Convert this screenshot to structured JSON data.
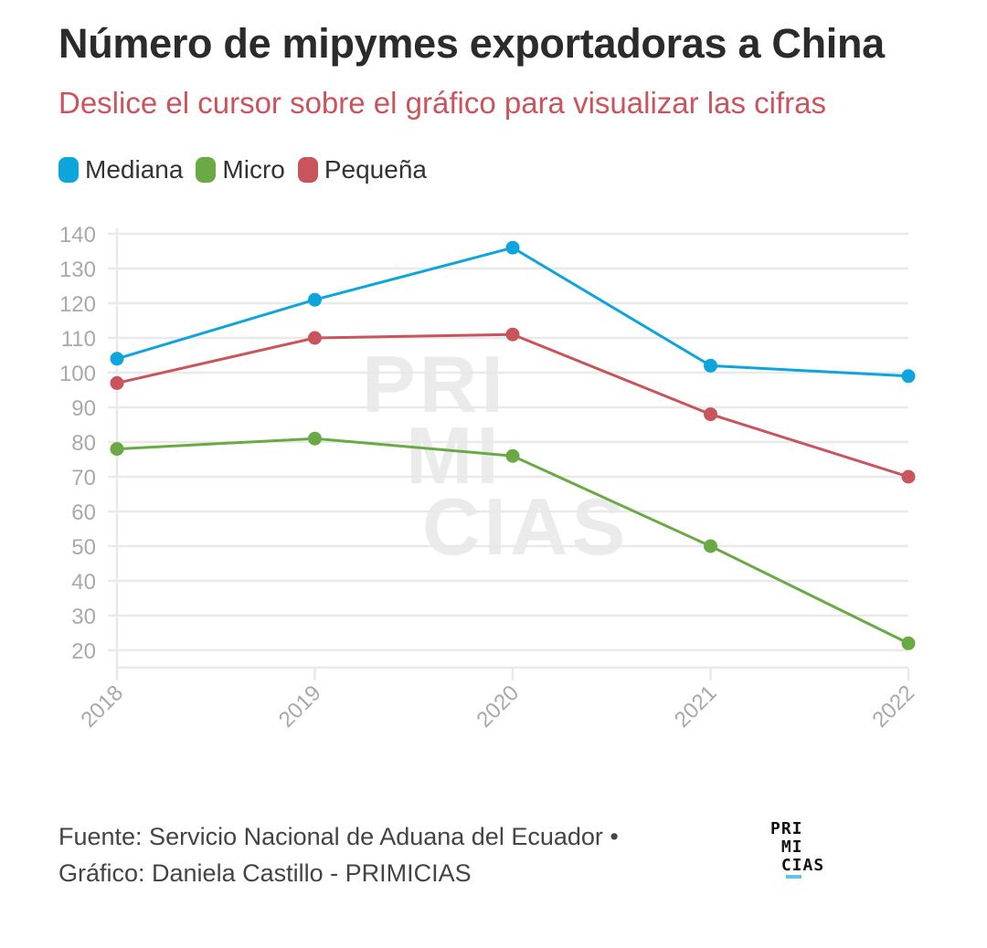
{
  "header": {
    "title": "Número de mipymes exportadoras a China",
    "subtitle": "Deslice el cursor sobre el gráfico para visualizar las cifras"
  },
  "legend": [
    {
      "label": "Mediana",
      "color": "#0ea5dc"
    },
    {
      "label": "Micro",
      "color": "#6aaa45"
    },
    {
      "label": "Pequeña",
      "color": "#c9545c"
    }
  ],
  "watermark": {
    "line1": "PRI",
    "line2": "MI",
    "line3": "CIAS"
  },
  "footer": {
    "source": "Fuente: Servicio Nacional de Aduana del Ecuador •",
    "credit": "Gráfico: Daniela Castillo - PRIMICIAS"
  },
  "logo": {
    "line1": "PRI",
    "line2": " MI",
    "line3": " CIAS",
    "accent_color": "#5fc3ea"
  },
  "chart_data": {
    "type": "line",
    "title": "Número de mipymes exportadoras a China",
    "subtitle": "Deslice el cursor sobre el gráfico para visualizar las cifras",
    "xlabel": "",
    "ylabel": "",
    "x": [
      "2018",
      "2019",
      "2020",
      "2021",
      "2022"
    ],
    "ylim": [
      20,
      140
    ],
    "yticks": [
      20,
      30,
      40,
      50,
      60,
      70,
      80,
      90,
      100,
      110,
      120,
      130,
      140
    ],
    "grid": true,
    "legend_position": "top-left",
    "series": [
      {
        "name": "Mediana",
        "color": "#0ea5dc",
        "values": [
          104,
          121,
          136,
          102,
          99
        ]
      },
      {
        "name": "Micro",
        "color": "#6aaa45",
        "values": [
          78,
          81,
          76,
          50,
          22
        ]
      },
      {
        "name": "Pequeña",
        "color": "#c9545c",
        "values": [
          97,
          110,
          111,
          88,
          70
        ]
      }
    ]
  }
}
